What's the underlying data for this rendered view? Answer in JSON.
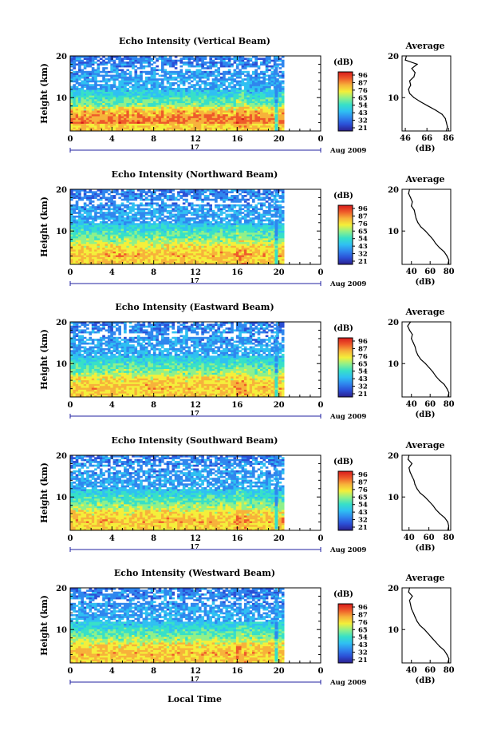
{
  "colors": {
    "colormap": [
      "#2b1f8f",
      "#2b4fd6",
      "#2f86ee",
      "#2fc0f2",
      "#37e0c8",
      "#8ff08a",
      "#f4ef3a",
      "#f7b23a",
      "#ee5a2a",
      "#d81b1b"
    ],
    "profile_line": "#000000",
    "time_axis": "#2020a0"
  },
  "common": {
    "ylabel": "Height (km)",
    "colorbar_unit": "(dB)",
    "colorbar_ticks": [
      "96",
      "87",
      "76",
      "65",
      "54",
      "43",
      "32",
      "21"
    ],
    "x_ticks": [
      "0",
      "4",
      "8",
      "12",
      "16",
      "20",
      "0"
    ],
    "day_label": "17",
    "date_label": "Aug 2009",
    "xlabel": "Local Time",
    "profile_title": "Average",
    "profile_xlabel": "(dB)"
  },
  "chart_data": [
    {
      "type": "heatmap",
      "title": "Echo Intensity (Vertical Beam)",
      "xlabel": "Local Time",
      "ylabel": "Height (km)",
      "x_range": [
        0,
        24
      ],
      "ylim": [
        2,
        20
      ],
      "y_ticks": [
        10,
        20
      ],
      "colorbar": {
        "label": "(dB)",
        "ticks": [
          96,
          87,
          76,
          65,
          54,
          43,
          32,
          21
        ]
      },
      "data_gaps_hours": [
        [
          19.4,
          19.6
        ],
        [
          19.9,
          20.0
        ],
        [
          20.5,
          24.0
        ]
      ],
      "profile": {
        "title": "Average",
        "xlabel": "(dB)",
        "xlim": [
          43,
          88
        ],
        "x_ticks": [
          46,
          66,
          86
        ],
        "height_km": [
          2,
          3,
          4,
          5,
          6,
          7,
          8,
          9,
          10,
          11,
          12,
          13,
          14,
          15,
          16,
          17,
          18,
          19,
          20
        ],
        "value_db": [
          84,
          85,
          84,
          83,
          80,
          74,
          67,
          60,
          54,
          50,
          49,
          51,
          50,
          54,
          55,
          52,
          57,
          46,
          47
        ]
      }
    },
    {
      "type": "heatmap",
      "title": "Echo Intensity (Northward Beam)",
      "xlabel": "Local Time",
      "ylabel": "Height (km)",
      "x_range": [
        0,
        24
      ],
      "ylim": [
        2,
        20
      ],
      "y_ticks": [
        10,
        20
      ],
      "colorbar": {
        "label": "(dB)",
        "ticks": [
          96,
          87,
          76,
          65,
          54,
          43,
          32,
          21
        ]
      },
      "data_gaps_hours": [
        [
          19.4,
          19.6
        ],
        [
          19.9,
          20.0
        ],
        [
          20.5,
          24.0
        ]
      ],
      "profile": {
        "title": "Average",
        "xlabel": "(dB)",
        "xlim": [
          30,
          82
        ],
        "x_ticks": [
          40,
          60,
          80
        ],
        "height_km": [
          2,
          3,
          4,
          5,
          6,
          7,
          8,
          9,
          10,
          11,
          12,
          13,
          14,
          15,
          16,
          17,
          18,
          19,
          20
        ],
        "value_db": [
          79,
          80,
          78,
          75,
          70,
          66,
          63,
          59,
          55,
          50,
          47,
          45,
          44,
          43,
          40,
          41,
          39,
          37,
          38
        ]
      }
    },
    {
      "type": "heatmap",
      "title": "Echo Intensity (Eastward Beam)",
      "xlabel": "Local Time",
      "ylabel": "Height (km)",
      "x_range": [
        0,
        24
      ],
      "ylim": [
        2,
        20
      ],
      "y_ticks": [
        10,
        20
      ],
      "colorbar": {
        "label": "(dB)",
        "ticks": [
          96,
          87,
          76,
          65,
          54,
          43,
          32,
          21
        ]
      },
      "data_gaps_hours": [
        [
          19.4,
          19.6
        ],
        [
          19.9,
          20.0
        ],
        [
          20.5,
          24.0
        ]
      ],
      "profile": {
        "title": "Average",
        "xlabel": "(dB)",
        "xlim": [
          30,
          82
        ],
        "x_ticks": [
          40,
          60,
          80
        ],
        "height_km": [
          2,
          3,
          4,
          5,
          6,
          7,
          8,
          9,
          10,
          11,
          12,
          13,
          14,
          15,
          16,
          17,
          18,
          19,
          20
        ],
        "value_db": [
          79,
          80,
          78,
          75,
          70,
          66,
          63,
          59,
          55,
          50,
          47,
          45,
          44,
          42,
          40,
          41,
          38,
          36,
          39
        ]
      }
    },
    {
      "type": "heatmap",
      "title": "Echo Intensity (Southward Beam)",
      "xlabel": "Local Time",
      "ylabel": "Height (km)",
      "x_range": [
        0,
        24
      ],
      "ylim": [
        2,
        20
      ],
      "y_ticks": [
        10,
        20
      ],
      "colorbar": {
        "label": "(dB)",
        "ticks": [
          96,
          87,
          76,
          65,
          54,
          43,
          32,
          21
        ]
      },
      "data_gaps_hours": [
        [
          19.4,
          19.6
        ],
        [
          19.9,
          20.0
        ],
        [
          20.5,
          24.0
        ]
      ],
      "profile": {
        "title": "Average",
        "xlabel": "(dB)",
        "xlim": [
          33,
          82
        ],
        "x_ticks": [
          40,
          60,
          80
        ],
        "height_km": [
          2,
          3,
          4,
          5,
          6,
          7,
          8,
          9,
          10,
          11,
          12,
          13,
          14,
          15,
          16,
          17,
          18,
          19,
          20
        ],
        "value_db": [
          79,
          80,
          79,
          76,
          71,
          67,
          64,
          60,
          56,
          51,
          48,
          46,
          45,
          43,
          41,
          40,
          43,
          39,
          40
        ]
      }
    },
    {
      "type": "heatmap",
      "title": "Echo Intensity (Westward Beam)",
      "xlabel": "Local Time",
      "ylabel": "Height (km)",
      "x_range": [
        0,
        24
      ],
      "ylim": [
        2,
        20
      ],
      "y_ticks": [
        10,
        20
      ],
      "colorbar": {
        "label": "(dB)",
        "ticks": [
          96,
          87,
          76,
          65,
          54,
          43,
          32,
          21
        ]
      },
      "data_gaps_hours": [
        [
          19.4,
          19.6
        ],
        [
          19.9,
          20.0
        ],
        [
          20.5,
          24.0
        ]
      ],
      "profile": {
        "title": "Average",
        "xlabel": "(dB)",
        "xlim": [
          30,
          82
        ],
        "x_ticks": [
          40,
          60,
          80
        ],
        "height_km": [
          2,
          3,
          4,
          5,
          6,
          7,
          8,
          9,
          10,
          11,
          12,
          13,
          14,
          15,
          16,
          17,
          18,
          19,
          20
        ],
        "value_db": [
          79,
          80,
          78,
          75,
          70,
          66,
          62,
          58,
          54,
          49,
          46,
          44,
          42,
          40,
          39,
          38,
          41,
          37,
          38
        ]
      }
    }
  ]
}
